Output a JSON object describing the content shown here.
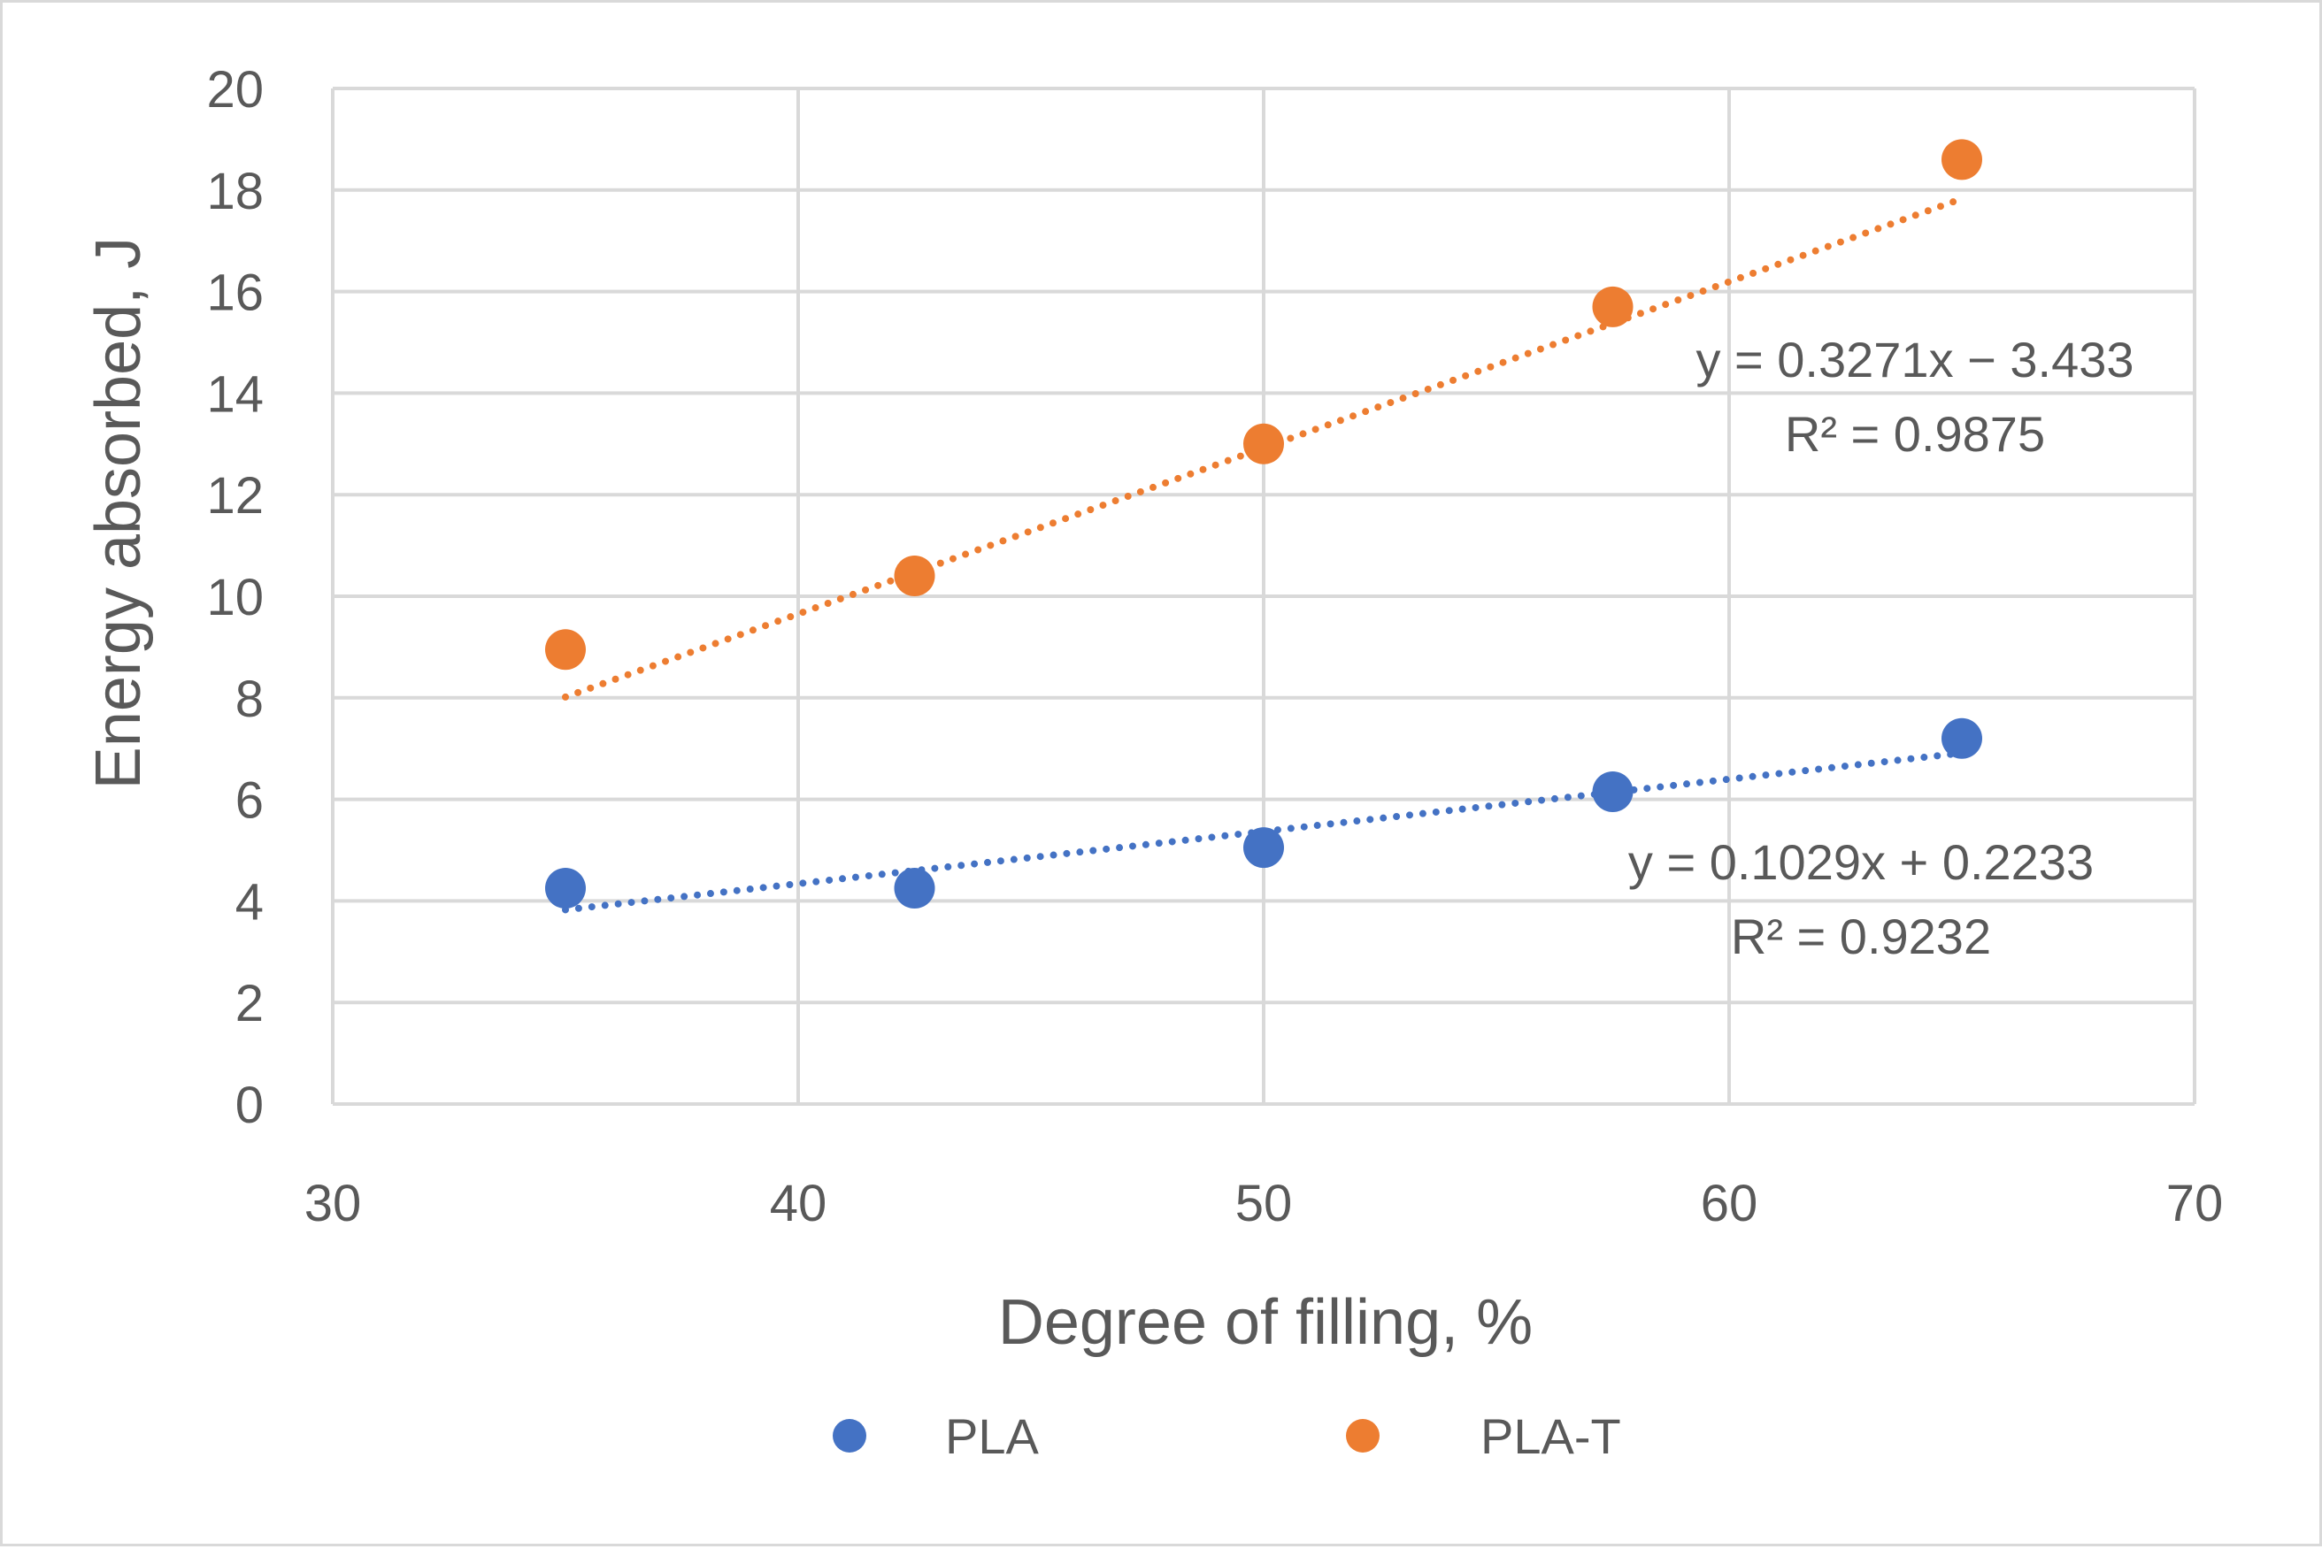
{
  "chart_data": {
    "type": "scatter",
    "title": "",
    "xlabel": "Degree of filling, %",
    "ylabel": "Energy absorbed, J",
    "xlim": [
      30,
      70
    ],
    "ylim": [
      0,
      20
    ],
    "xticks": [
      30,
      40,
      50,
      60,
      70
    ],
    "yticks": [
      0,
      2,
      4,
      6,
      8,
      10,
      12,
      14,
      16,
      18,
      20
    ],
    "grid": true,
    "legend_position": "bottom",
    "series": [
      {
        "name": "PLA",
        "color": "#4472C4",
        "x": [
          35,
          42.5,
          50,
          57.5,
          65
        ],
        "y": [
          4.25,
          4.25,
          5.05,
          6.15,
          7.2
        ],
        "trendline": {
          "type": "linear",
          "slope": 0.1029,
          "intercept": 0.2233,
          "equation": "y = 0.1029x + 0.2233",
          "r2": "R² = 0.9232"
        }
      },
      {
        "name": "PLA-T",
        "color": "#ED7D31",
        "x": [
          35,
          42.5,
          50,
          57.5,
          65
        ],
        "y": [
          8.95,
          10.4,
          13.0,
          15.7,
          18.6
        ],
        "trendline": {
          "type": "linear",
          "slope": 0.3271,
          "intercept": -3.433,
          "equation": "y = 0.3271x − 3.433",
          "r2": "R² = 0.9875"
        }
      }
    ]
  }
}
